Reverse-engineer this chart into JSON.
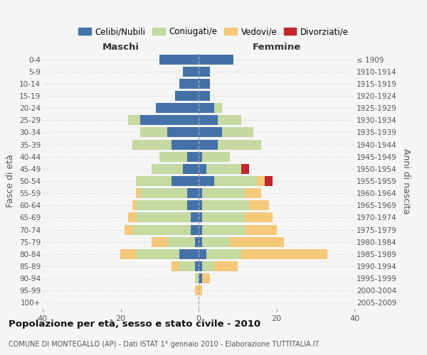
{
  "age_groups": [
    "0-4",
    "5-9",
    "10-14",
    "15-19",
    "20-24",
    "25-29",
    "30-34",
    "35-39",
    "40-44",
    "45-49",
    "50-54",
    "55-59",
    "60-64",
    "65-69",
    "70-74",
    "75-79",
    "80-84",
    "85-89",
    "90-94",
    "95-99",
    "100+"
  ],
  "birth_years": [
    "2005-2009",
    "2000-2004",
    "1995-1999",
    "1990-1994",
    "1985-1989",
    "1980-1984",
    "1975-1979",
    "1970-1974",
    "1965-1969",
    "1960-1964",
    "1955-1959",
    "1950-1954",
    "1945-1949",
    "1940-1944",
    "1935-1939",
    "1930-1934",
    "1925-1929",
    "1920-1924",
    "1915-1919",
    "1910-1914",
    "≤ 1909"
  ],
  "maschi": {
    "celibi": [
      10,
      4,
      5,
      6,
      11,
      15,
      8,
      7,
      3,
      4,
      7,
      3,
      3,
      2,
      2,
      1,
      5,
      1,
      0,
      0,
      0
    ],
    "coniugati": [
      0,
      0,
      0,
      0,
      0,
      3,
      7,
      10,
      7,
      8,
      9,
      12,
      13,
      14,
      15,
      7,
      11,
      4,
      1,
      0,
      0
    ],
    "vedovi": [
      0,
      0,
      0,
      0,
      0,
      0,
      0,
      0,
      0,
      0,
      0,
      1,
      1,
      2,
      2,
      4,
      4,
      2,
      0,
      1,
      0
    ],
    "divorziati": [
      0,
      0,
      0,
      0,
      0,
      0,
      0,
      0,
      0,
      0,
      0,
      0,
      0,
      0,
      0,
      0,
      0,
      0,
      0,
      0,
      0
    ]
  },
  "femmine": {
    "nubili": [
      9,
      3,
      3,
      3,
      4,
      5,
      6,
      5,
      1,
      2,
      4,
      1,
      1,
      1,
      1,
      1,
      2,
      1,
      1,
      0,
      0
    ],
    "coniugate": [
      0,
      0,
      0,
      0,
      2,
      6,
      8,
      11,
      7,
      9,
      11,
      11,
      12,
      11,
      11,
      7,
      9,
      3,
      0,
      0,
      0
    ],
    "vedove": [
      0,
      0,
      0,
      0,
      0,
      0,
      0,
      0,
      0,
      0,
      2,
      4,
      5,
      7,
      8,
      14,
      22,
      6,
      2,
      1,
      0
    ],
    "divorziate": [
      0,
      0,
      0,
      0,
      0,
      0,
      0,
      0,
      0,
      2,
      2,
      0,
      0,
      0,
      0,
      0,
      0,
      0,
      0,
      0,
      0
    ]
  },
  "colors": {
    "celibi": "#4472a8",
    "coniugati": "#c5d9a0",
    "vedovi": "#f5c87a",
    "divorziati": "#c0282c"
  },
  "xlim": 40,
  "title": "Popolazione per età, sesso e stato civile - 2010",
  "subtitle": "COMUNE DI MONTEGALLO (AP) - Dati ISTAT 1° gennaio 2010 - Elaborazione TUTTITALIA.IT",
  "ylabel_left": "Fasce di età",
  "ylabel_right": "Anni di nascita",
  "label_maschi": "Maschi",
  "label_femmine": "Femmine",
  "legend_labels": [
    "Celibi/Nubili",
    "Coniugati/e",
    "Vedovi/e",
    "Divorziati/e"
  ],
  "bg_color": "#f5f5f5",
  "bar_height": 0.82
}
